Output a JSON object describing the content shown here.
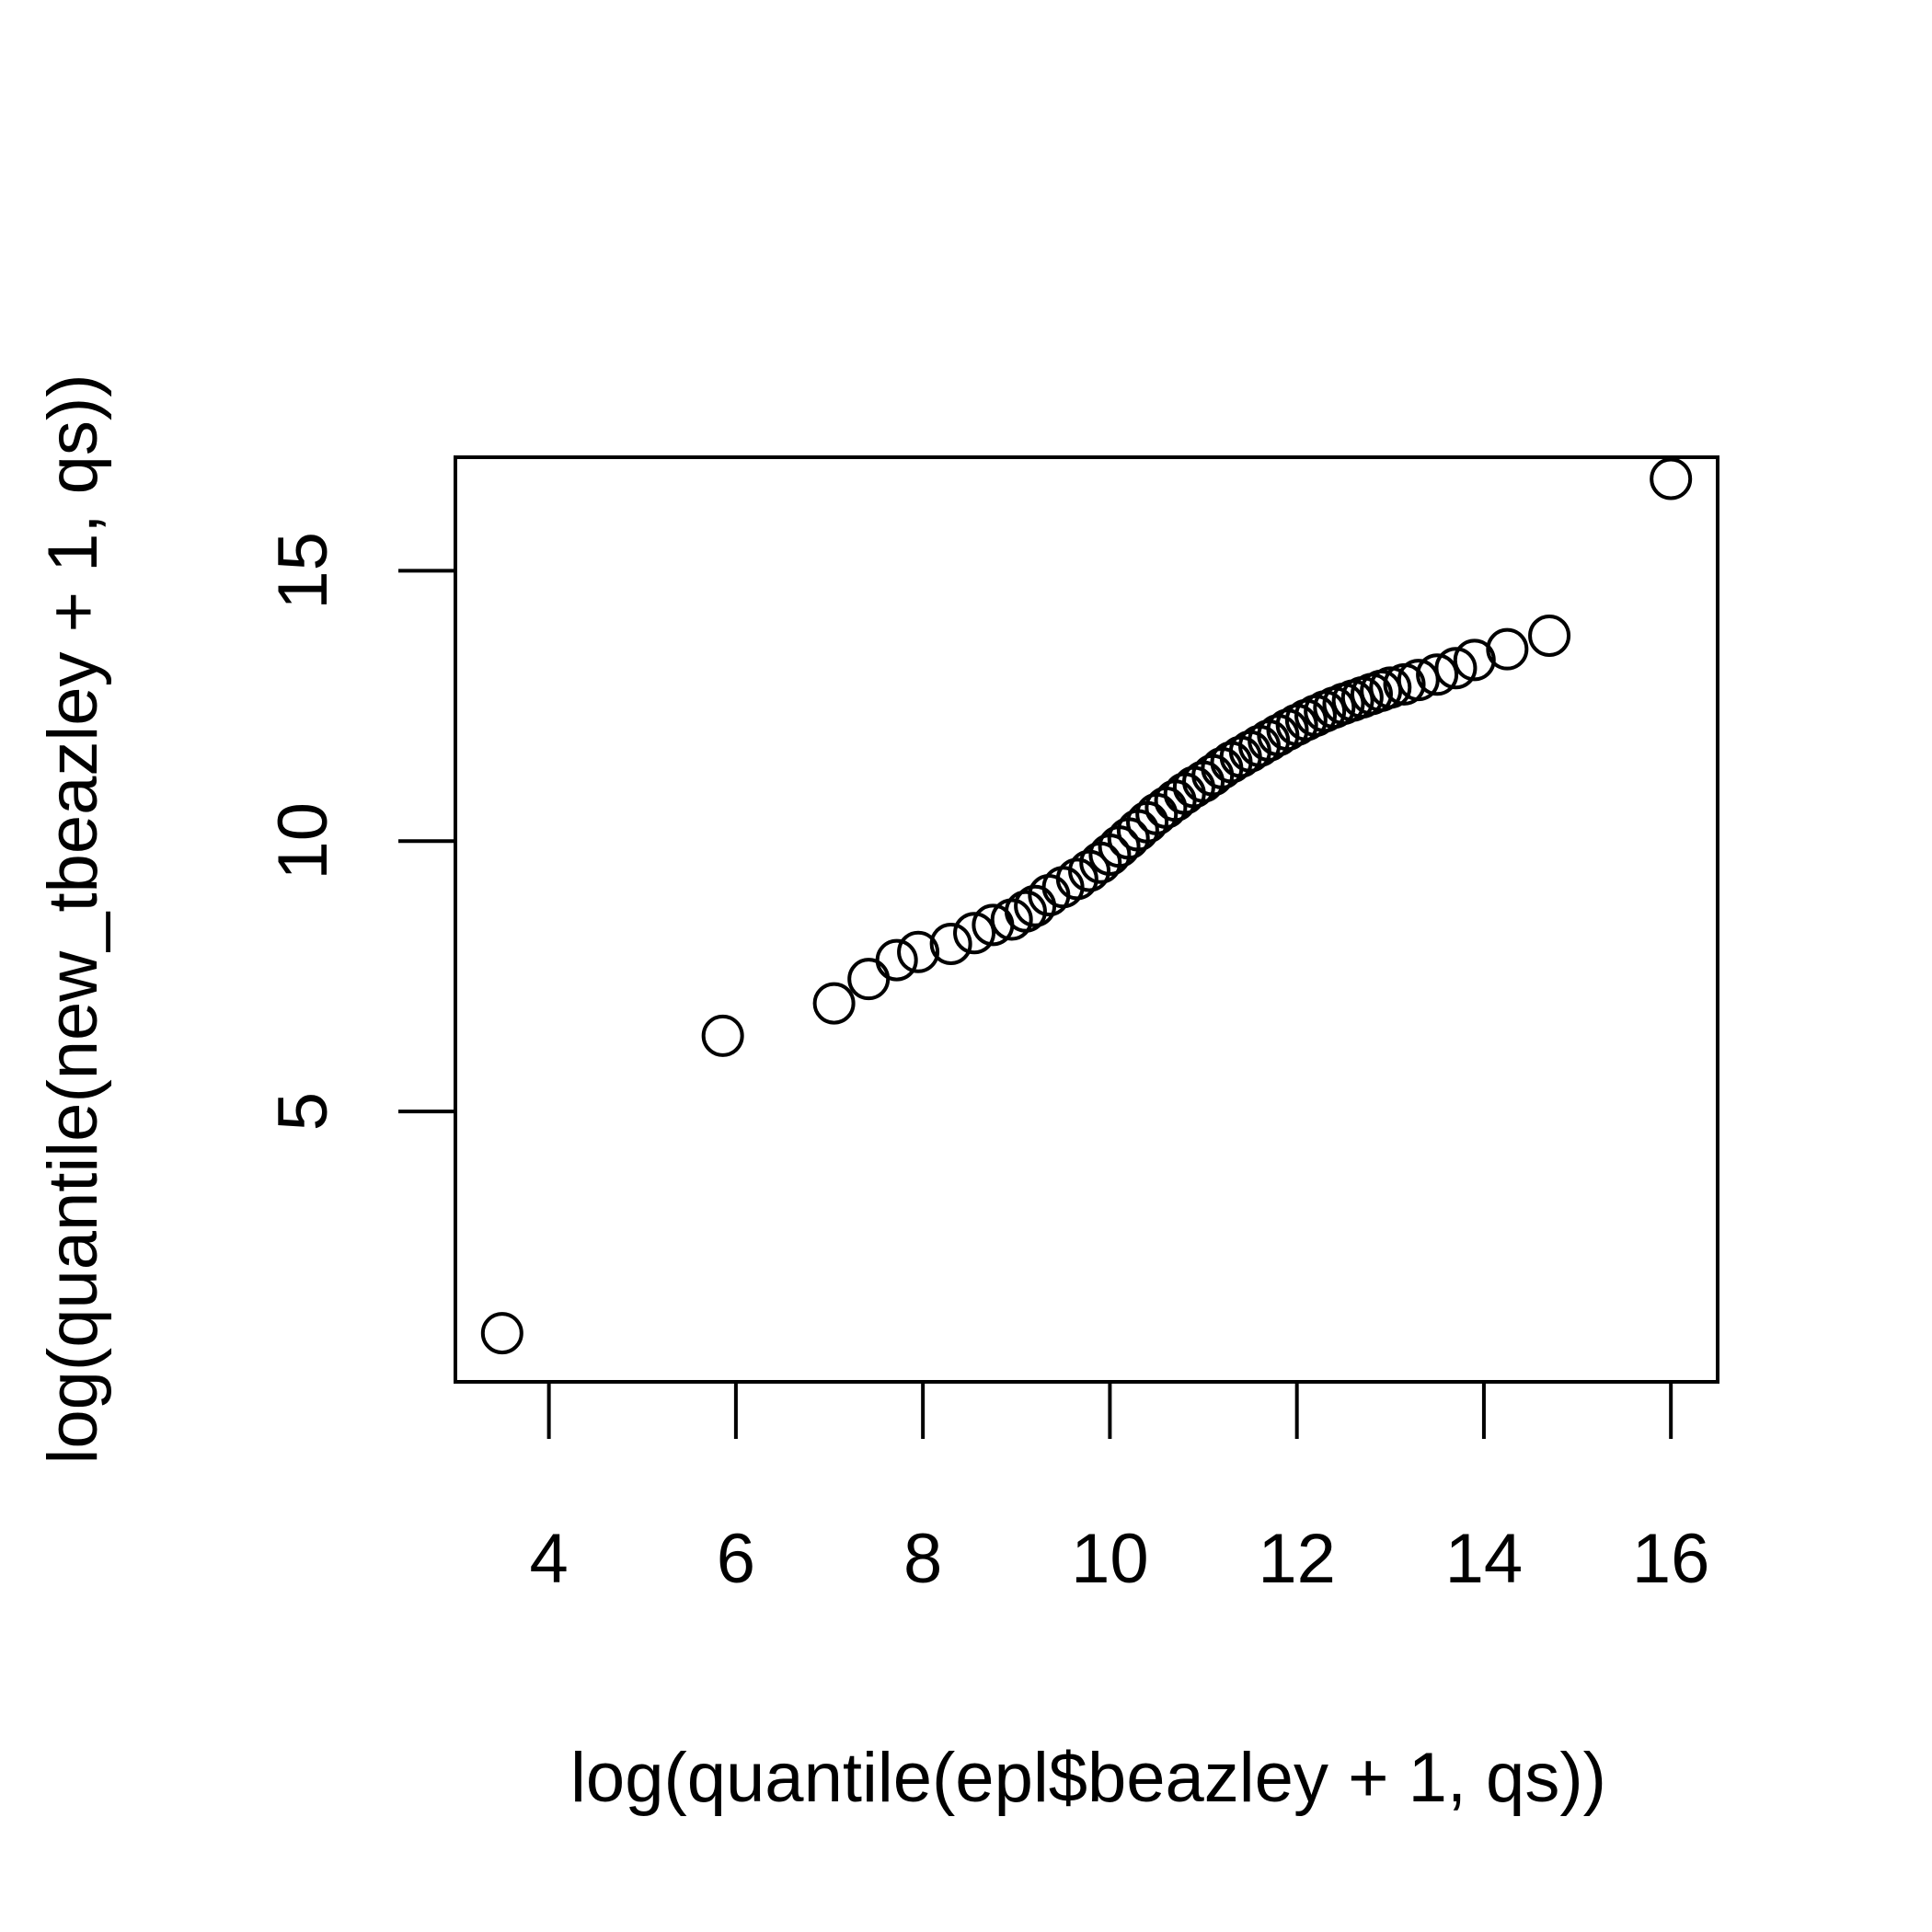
{
  "chart_data": {
    "type": "scatter",
    "xlabel": "log(quantile(epl$beazley + 1, qs))",
    "ylabel": "log(quantile(new_tbeazley + 1, qs))",
    "xlim": [
      3.0,
      16.5
    ],
    "ylim": [
      0.0,
      17.1
    ],
    "xticks": [
      "4",
      "6",
      "8",
      "10",
      "12",
      "14",
      "16"
    ],
    "yticks": [
      "5",
      "10",
      "15"
    ],
    "grid": false,
    "marker": "open-circle",
    "colors": {
      "points": "#000000",
      "axes": "#000000",
      "background": "#ffffff"
    },
    "x": [
      3.5,
      5.86,
      7.05,
      7.42,
      7.72,
      7.95,
      8.3,
      8.55,
      8.75,
      8.95,
      9.1,
      9.2,
      9.35,
      9.5,
      9.65,
      9.78,
      9.9,
      10.0,
      10.1,
      10.2,
      10.3,
      10.4,
      10.5,
      10.6,
      10.7,
      10.8,
      10.9,
      11.0,
      11.1,
      11.2,
      11.3,
      11.4,
      11.5,
      11.6,
      11.7,
      11.8,
      11.9,
      12.0,
      12.1,
      12.2,
      12.3,
      12.4,
      12.5,
      12.6,
      12.7,
      12.8,
      12.9,
      13.0,
      13.15,
      13.3,
      13.5,
      13.7,
      13.9,
      14.25,
      14.7,
      16.0
    ],
    "y": [
      0.9,
      6.4,
      7.0,
      7.45,
      7.8,
      7.95,
      8.1,
      8.3,
      8.45,
      8.55,
      8.7,
      8.8,
      9.0,
      9.15,
      9.3,
      9.45,
      9.6,
      9.75,
      9.9,
      10.05,
      10.2,
      10.35,
      10.5,
      10.62,
      10.75,
      10.88,
      11.0,
      11.1,
      11.22,
      11.35,
      11.46,
      11.56,
      11.66,
      11.76,
      11.86,
      11.96,
      12.06,
      12.15,
      12.24,
      12.32,
      12.4,
      12.47,
      12.54,
      12.6,
      12.66,
      12.72,
      12.78,
      12.84,
      12.9,
      12.98,
      13.08,
      13.2,
      13.35,
      13.55,
      13.8,
      16.7
    ]
  }
}
